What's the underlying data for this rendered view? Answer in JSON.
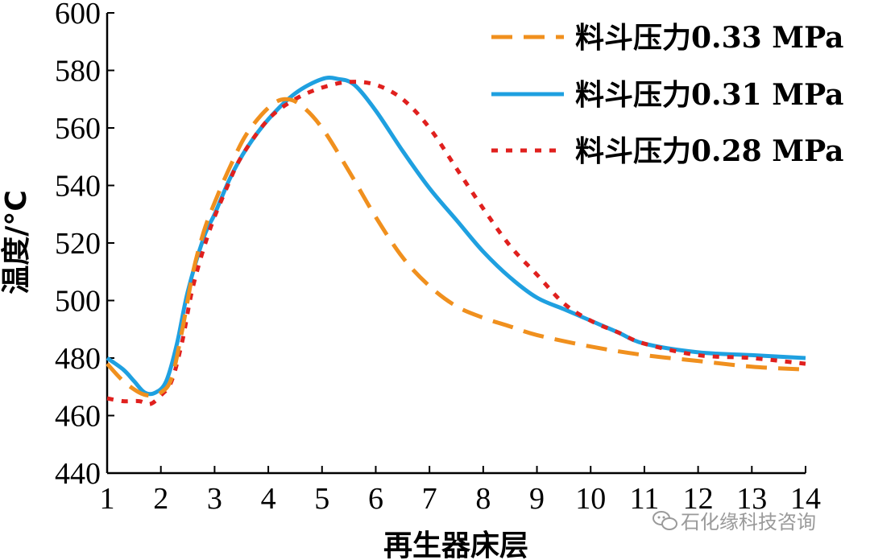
{
  "chart_data": {
    "type": "line",
    "title": "",
    "xlabel": "再生器床层",
    "ylabel": "温度/°C",
    "xlim": [
      1,
      14
    ],
    "ylim": [
      440,
      600
    ],
    "x_ticks": [
      1,
      2,
      3,
      4,
      5,
      6,
      7,
      8,
      9,
      10,
      11,
      12,
      13,
      14
    ],
    "y_ticks": [
      440,
      460,
      480,
      500,
      520,
      540,
      560,
      580,
      600
    ],
    "grid": false,
    "legend_position": "top-right",
    "series": [
      {
        "name": "料斗压力0.33 MPa",
        "color": "#F0901E",
        "dash": "dashed",
        "x": [
          1,
          1.3,
          1.6,
          1.8,
          2.0,
          2.2,
          2.4,
          2.6,
          2.8,
          3.0,
          3.3,
          3.6,
          4.0,
          4.3,
          4.6,
          5.0,
          5.5,
          6.0,
          6.5,
          7.0,
          7.5,
          8.0,
          8.5,
          9.0,
          10.0,
          11.0,
          12.0,
          13.0,
          14.0
        ],
        "y": [
          478,
          472,
          468,
          467,
          468,
          473,
          490,
          510,
          524,
          534,
          547,
          558,
          567,
          570,
          568,
          560,
          545,
          529,
          515,
          505,
          498,
          494,
          491,
          488,
          484,
          481,
          479,
          477,
          476
        ]
      },
      {
        "name": "料斗压力0.31 MPa",
        "color": "#1FA0E0",
        "dash": "solid",
        "x": [
          1,
          1.3,
          1.5,
          1.7,
          1.9,
          2.1,
          2.3,
          2.5,
          2.8,
          3.0,
          3.3,
          3.6,
          4.0,
          4.5,
          5.0,
          5.3,
          5.6,
          6.0,
          6.5,
          7.0,
          7.5,
          8.0,
          8.5,
          9.0,
          9.5,
          10.0,
          10.5,
          11.0,
          12.0,
          13.0,
          14.0
        ],
        "y": [
          480,
          476,
          472,
          468,
          468,
          472,
          485,
          503,
          522,
          530,
          543,
          553,
          563,
          572,
          577,
          577,
          575,
          566,
          552,
          539,
          528,
          517,
          508,
          501,
          497,
          493,
          489,
          485,
          482,
          481,
          480
        ]
      },
      {
        "name": "料斗压力0.28 MPa",
        "color": "#E0201E",
        "dash": "dotted",
        "x": [
          1,
          1.3,
          1.6,
          1.8,
          2.0,
          2.2,
          2.4,
          2.6,
          2.9,
          3.2,
          3.5,
          4.0,
          4.5,
          5.0,
          5.5,
          6.0,
          6.5,
          7.0,
          7.5,
          8.0,
          8.5,
          9.0,
          9.5,
          10.0,
          10.5,
          11.0,
          12.0,
          13.0,
          14.0
        ],
        "y": [
          466,
          465,
          465,
          464,
          467,
          472,
          486,
          505,
          524,
          538,
          550,
          563,
          570,
          574,
          576,
          575,
          570,
          560,
          546,
          532,
          519,
          509,
          499,
          493,
          489,
          485,
          481,
          480,
          478
        ]
      }
    ]
  },
  "watermark": {
    "text": "石化缘科技咨询",
    "icon": "wechat-icon"
  }
}
